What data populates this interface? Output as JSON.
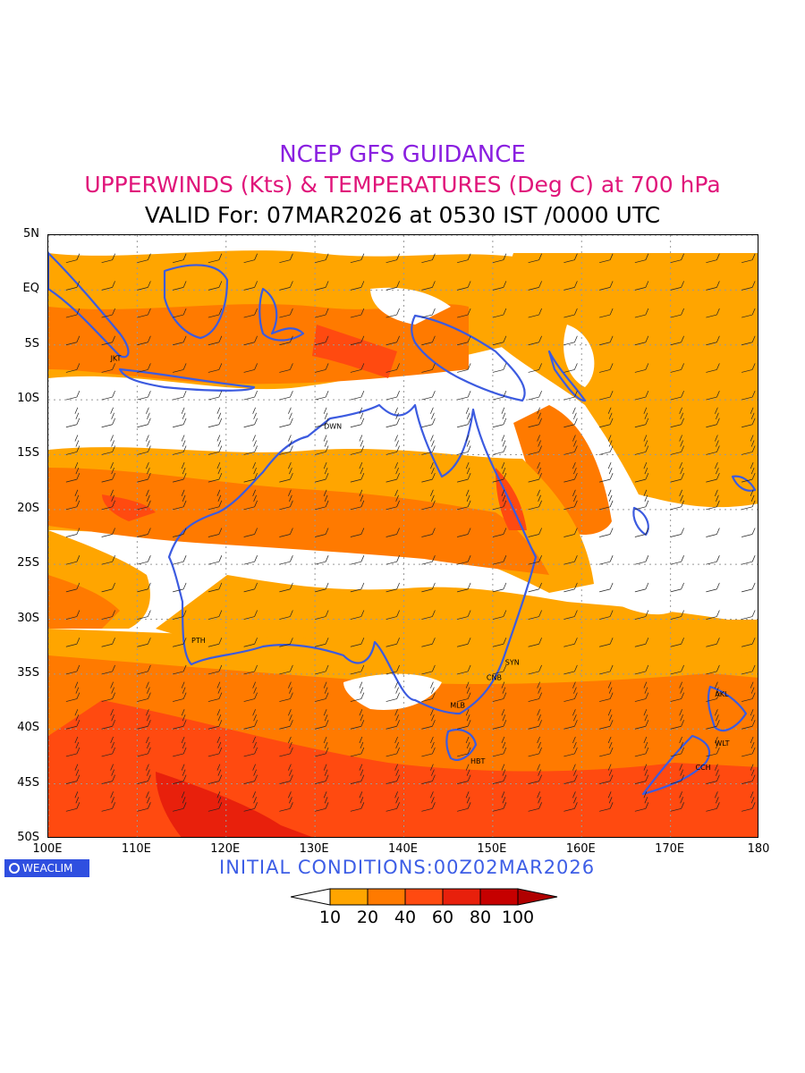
{
  "titles": {
    "line1": "NCEP GFS GUIDANCE",
    "line2": "UPPERWINDS (Kts) & TEMPERATURES (Deg C) at 700 hPa",
    "line3": "VALID For: 07MAR2026 at 0530 IST /0000 UTC"
  },
  "map": {
    "lat_labels": [
      "5N",
      "EQ",
      "5S",
      "10S",
      "15S",
      "20S",
      "25S",
      "30S",
      "35S",
      "40S",
      "45S",
      "50S"
    ],
    "lon_labels": [
      "100E",
      "110E",
      "120E",
      "130E",
      "140E",
      "150E",
      "160E",
      "170E",
      "180"
    ],
    "lat_range": [
      -50,
      5
    ],
    "lon_range": [
      100,
      180
    ],
    "grid": "dotted",
    "coastline_color": "#3c5be0",
    "places": [
      {
        "label": "JKT",
        "lon": 106.8,
        "lat": -6.2
      },
      {
        "label": "DWN",
        "lon": 130.8,
        "lat": -12.4
      },
      {
        "label": "PTH",
        "lon": 115.9,
        "lat": -31.9
      },
      {
        "label": "SYN",
        "lon": 151.2,
        "lat": -33.9
      },
      {
        "label": "CNB",
        "lon": 149.1,
        "lat": -35.3
      },
      {
        "label": "MLB",
        "lon": 145.0,
        "lat": -37.8
      },
      {
        "label": "HBT",
        "lon": 147.3,
        "lat": -42.9
      },
      {
        "label": "AKL",
        "lon": 174.8,
        "lat": -36.8
      },
      {
        "label": "WLT",
        "lon": 174.8,
        "lat": -41.3
      },
      {
        "label": "CCH",
        "lon": 172.6,
        "lat": -43.5
      }
    ]
  },
  "colorbar": {
    "levels": [
      "10",
      "20",
      "40",
      "60",
      "80",
      "100"
    ],
    "colors": [
      "#ffffff",
      "#ffa500",
      "#ff7a00",
      "#ff4a10",
      "#e8200c",
      "#c60000",
      "#b00000"
    ]
  },
  "footer": {
    "badge": "WEACLIM",
    "initial_conditions": "INITIAL CONDITIONS:00Z02MAR2026"
  }
}
